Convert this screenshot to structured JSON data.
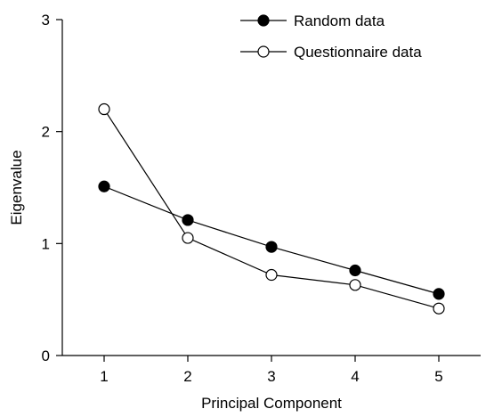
{
  "chart_data": {
    "type": "line",
    "title": "",
    "xlabel": "Principal Component",
    "ylabel": "Eigenvalue",
    "x": [
      1,
      2,
      3,
      4,
      5
    ],
    "xticks": [
      "1",
      "2",
      "3",
      "4",
      "5"
    ],
    "yticks": [
      "0",
      "1",
      "2",
      "3"
    ],
    "xlim": [
      0.5,
      5.5
    ],
    "ylim": [
      0,
      3
    ],
    "grid": false,
    "legend_position": "top-right",
    "series": [
      {
        "name": "Random data",
        "marker": "filled-circle",
        "color": "#000000",
        "values": [
          1.51,
          1.21,
          0.97,
          0.76,
          0.55
        ]
      },
      {
        "name": "Questionnaire data",
        "marker": "open-circle",
        "color": "#000000",
        "values": [
          2.2,
          1.05,
          0.72,
          0.63,
          0.42
        ]
      }
    ]
  }
}
